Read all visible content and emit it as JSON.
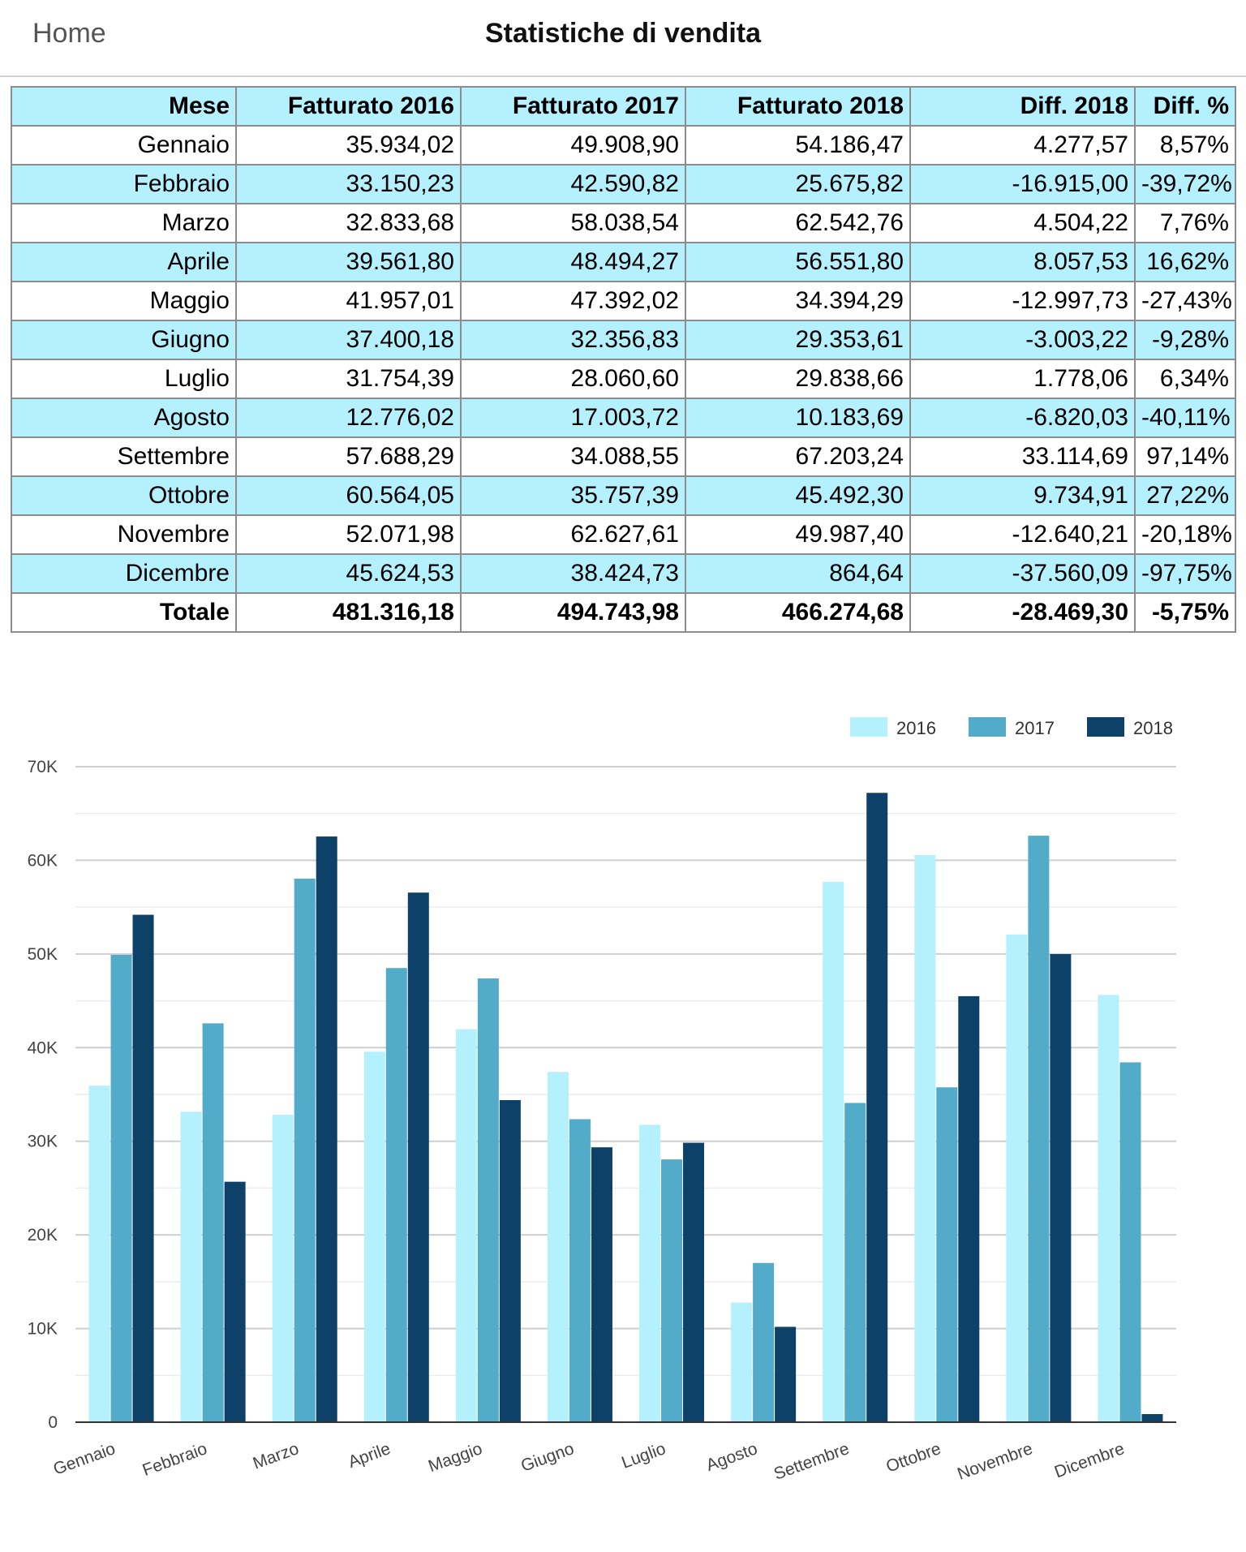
{
  "nav": {
    "back_label": "Home",
    "title": "Statistiche di vendita"
  },
  "table": {
    "headers": [
      "Mese",
      "Fatturato 2016",
      "Fatturato 2017",
      "Fatturato 2018",
      "Diff. 2018",
      "Diff. %"
    ],
    "rows": [
      [
        "Gennaio",
        "35.934,02",
        "49.908,90",
        "54.186,47",
        "4.277,57",
        "8,57%"
      ],
      [
        "Febbraio",
        "33.150,23",
        "42.590,82",
        "25.675,82",
        "-16.915,00",
        "-39,72%"
      ],
      [
        "Marzo",
        "32.833,68",
        "58.038,54",
        "62.542,76",
        "4.504,22",
        "7,76%"
      ],
      [
        "Aprile",
        "39.561,80",
        "48.494,27",
        "56.551,80",
        "8.057,53",
        "16,62%"
      ],
      [
        "Maggio",
        "41.957,01",
        "47.392,02",
        "34.394,29",
        "-12.997,73",
        "-27,43%"
      ],
      [
        "Giugno",
        "37.400,18",
        "32.356,83",
        "29.353,61",
        "-3.003,22",
        "-9,28%"
      ],
      [
        "Luglio",
        "31.754,39",
        "28.060,60",
        "29.838,66",
        "1.778,06",
        "6,34%"
      ],
      [
        "Agosto",
        "12.776,02",
        "17.003,72",
        "10.183,69",
        "-6.820,03",
        "-40,11%"
      ],
      [
        "Settembre",
        "57.688,29",
        "34.088,55",
        "67.203,24",
        "33.114,69",
        "97,14%"
      ],
      [
        "Ottobre",
        "60.564,05",
        "35.757,39",
        "45.492,30",
        "9.734,91",
        "27,22%"
      ],
      [
        "Novembre",
        "52.071,98",
        "62.627,61",
        "49.987,40",
        "-12.640,21",
        "-20,18%"
      ],
      [
        "Dicembre",
        "45.624,53",
        "38.424,73",
        "864,64",
        "-37.560,09",
        "-97,75%"
      ]
    ],
    "total": [
      "Totale",
      "481.316,18",
      "494.743,98",
      "466.274,68",
      "-28.469,30",
      "-5,75%"
    ]
  },
  "chart_data": {
    "type": "bar",
    "categories": [
      "Gennaio",
      "Febbraio",
      "Marzo",
      "Aprile",
      "Maggio",
      "Giugno",
      "Luglio",
      "Agosto",
      "Settembre",
      "Ottobre",
      "Novembre",
      "Dicembre"
    ],
    "series": [
      {
        "name": "2016",
        "color": "#b4f0fd",
        "values": [
          35934.02,
          33150.23,
          32833.68,
          39561.8,
          41957.01,
          37400.18,
          31754.39,
          12776.02,
          57688.29,
          60564.05,
          52071.98,
          45624.53
        ]
      },
      {
        "name": "2017",
        "color": "#52abc9",
        "values": [
          49908.9,
          42590.82,
          58038.54,
          48494.27,
          47392.02,
          32356.83,
          28060.6,
          17003.72,
          34088.55,
          35757.39,
          62627.61,
          38424.73
        ]
      },
      {
        "name": "2018",
        "color": "#0e4167",
        "values": [
          54186.47,
          25675.82,
          62542.76,
          56551.8,
          34394.29,
          29353.61,
          29838.66,
          10183.69,
          67203.24,
          45492.3,
          49987.4,
          864.64
        ]
      }
    ],
    "ylim": [
      0,
      70000
    ],
    "yticks": [
      0,
      10000,
      20000,
      30000,
      40000,
      50000,
      60000,
      70000
    ],
    "ytick_labels": [
      "0",
      "10K",
      "20K",
      "30K",
      "40K",
      "50K",
      "60K",
      "70K"
    ],
    "grid": true,
    "legend": "top-right",
    "title": "",
    "xlabel": "",
    "ylabel": ""
  }
}
